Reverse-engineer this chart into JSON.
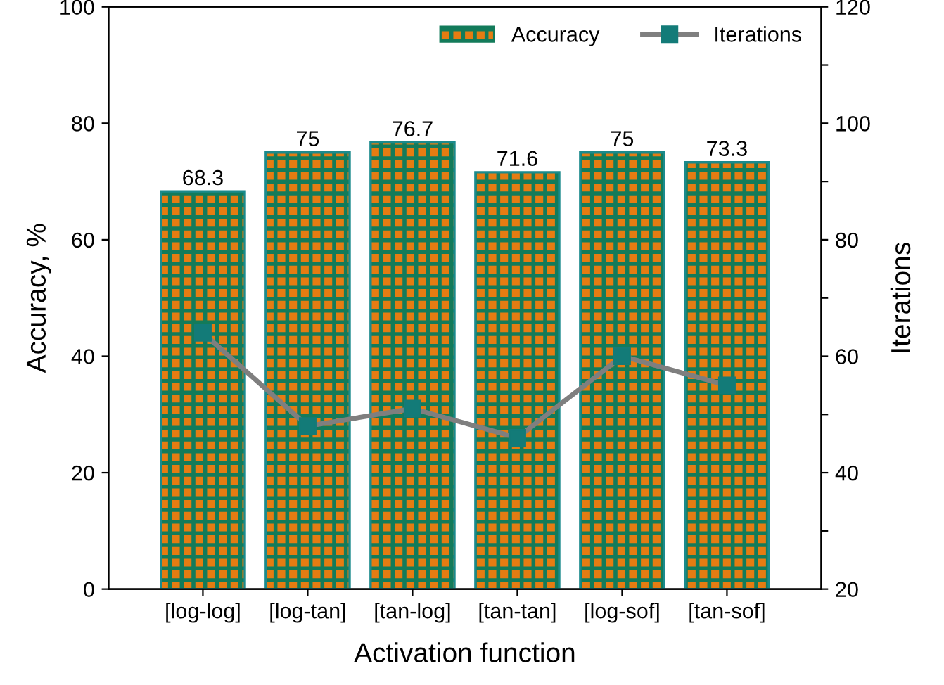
{
  "chart_data": {
    "type": "bar",
    "xlabel": "Activation function",
    "ylabel": "Accuracy, %",
    "y2label": "Iterations",
    "categories": [
      "[log-log]",
      "[log-tan]",
      "[tan-log]",
      "[tan-tan]",
      "[log-sof]",
      "[tan-sof]"
    ],
    "series": [
      {
        "name": "Accuracy",
        "color": "#e57c12",
        "values": [
          68.3,
          75,
          76.7,
          71.6,
          75,
          73.3
        ],
        "value_labels": [
          "68.3",
          "75",
          "76.7",
          "71.6",
          "75",
          "73.3"
        ]
      },
      {
        "name": "Iterations",
        "type": "line",
        "axis": "y2",
        "color": "#137b78",
        "marker": "square",
        "values": [
          64,
          48,
          51,
          46,
          60,
          55
        ]
      }
    ],
    "ylim": [
      0,
      100
    ],
    "yticks": [
      0,
      20,
      40,
      60,
      80,
      100
    ],
    "y2lim": [
      20,
      120
    ],
    "y2ticks": [
      20,
      {
        "value": 30,
        "label": null
      },
      40,
      {
        "value": 50,
        "label": null
      },
      60,
      {
        "value": 70,
        "label": null
      },
      80,
      {
        "value": 90,
        "label": null
      },
      100,
      {
        "value": 110,
        "label": null
      },
      120
    ],
    "legend": "top right"
  }
}
